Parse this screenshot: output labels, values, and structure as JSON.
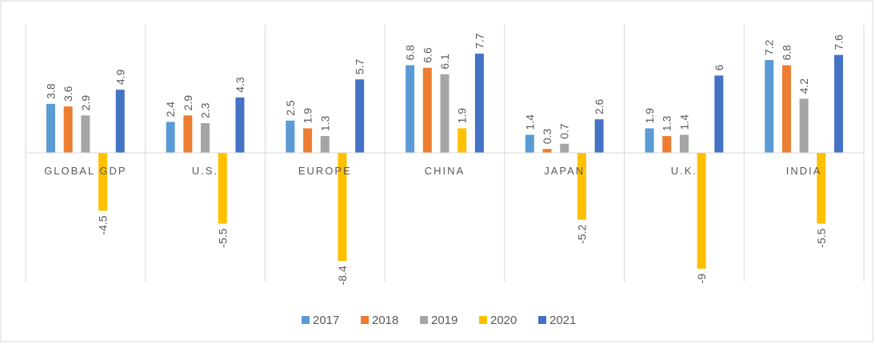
{
  "chart_data": {
    "type": "bar",
    "categories": [
      "GLOBAL GDP",
      "U.S.",
      "EUROPE",
      "CHINA",
      "JAPAN",
      "U.K.",
      "INDIA"
    ],
    "series": [
      {
        "name": "2017",
        "color": "#5b9bd5",
        "values": [
          3.8,
          2.4,
          2.5,
          6.8,
          1.4,
          1.9,
          7.2
        ]
      },
      {
        "name": "2018",
        "color": "#ed7d31",
        "values": [
          3.6,
          2.9,
          1.9,
          6.6,
          0.3,
          1.3,
          6.8
        ]
      },
      {
        "name": "2019",
        "color": "#a5a5a5",
        "values": [
          2.9,
          2.3,
          1.3,
          6.1,
          0.7,
          1.4,
          4.2
        ]
      },
      {
        "name": "2020",
        "color": "#ffc000",
        "values": [
          -4.5,
          -5.5,
          -8.4,
          1.9,
          -5.2,
          -9,
          -5.5
        ]
      },
      {
        "name": "2021",
        "color": "#4472c4",
        "values": [
          4.9,
          4.3,
          5.7,
          7.7,
          2.6,
          6,
          7.6
        ]
      }
    ],
    "ylim": [
      -10,
      10
    ],
    "legend": "bottom"
  }
}
